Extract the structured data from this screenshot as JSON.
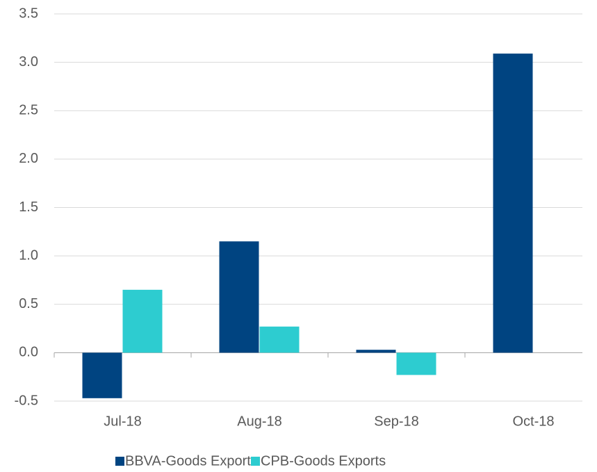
{
  "chart_data": {
    "type": "bar",
    "categories": [
      "Jul-18",
      "Aug-18",
      "Sep-18",
      "Oct-18"
    ],
    "series": [
      {
        "name": "BBVA-Goods Exports",
        "color": "#004481",
        "values": [
          -0.47,
          1.15,
          0.03,
          3.09
        ]
      },
      {
        "name": "CPB-Goods Exports",
        "color": "#2dccd0",
        "values": [
          0.65,
          0.27,
          -0.23,
          null
        ]
      }
    ],
    "ylim": [
      -0.5,
      3.5
    ],
    "yticks": [
      -0.5,
      {
        "value": 0,
        "label": "0.0"
      },
      0.5,
      {
        "value": 1,
        "label": "1.0"
      },
      1.5,
      {
        "value": 2,
        "label": "2.0"
      },
      2.5,
      {
        "value": 3,
        "label": "3.0"
      },
      3.5
    ],
    "grid": true,
    "legend": "bottom"
  }
}
